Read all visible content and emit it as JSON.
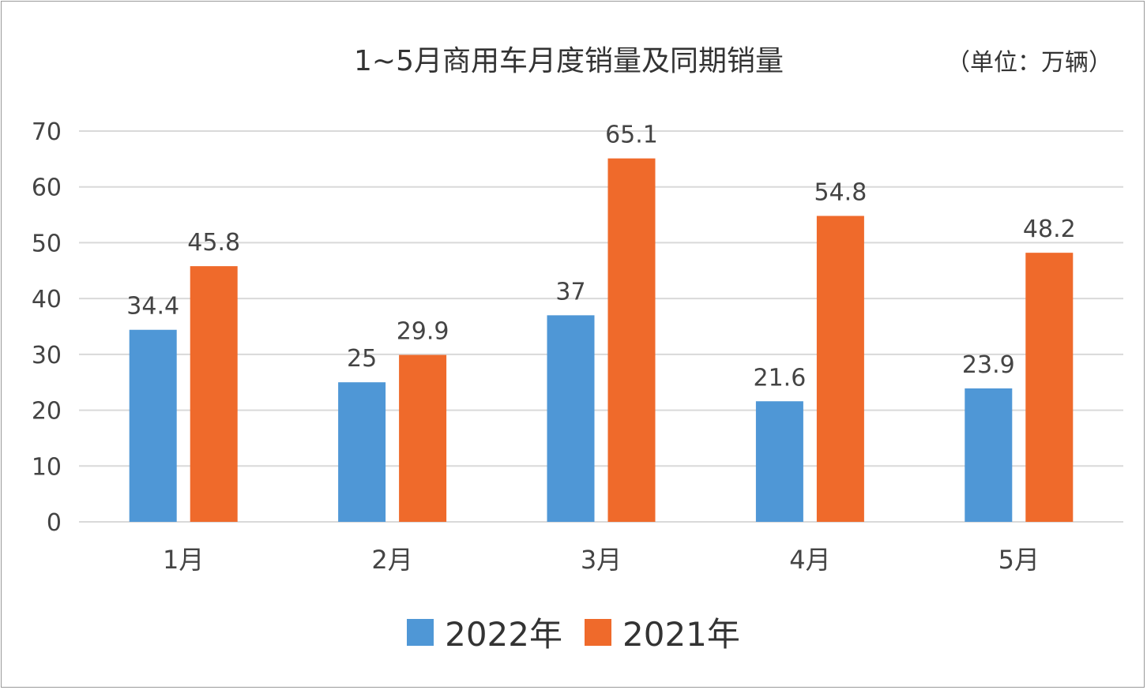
{
  "chart_data": {
    "type": "bar",
    "title": "1~5月商用车月度销量及同期销量",
    "unit": "（单位：万辆）",
    "categories": [
      "1月",
      "2月",
      "3月",
      "4月",
      "5月"
    ],
    "series": [
      {
        "name": "2022年",
        "color": "#4f97d6",
        "values": [
          34.4,
          25,
          37,
          21.6,
          23.9
        ]
      },
      {
        "name": "2021年",
        "color": "#ef6a2b",
        "values": [
          45.8,
          29.9,
          65.1,
          54.8,
          48.2
        ]
      }
    ],
    "yticks": [
      0,
      10,
      20,
      30,
      40,
      50,
      60,
      70
    ],
    "ylim": [
      0,
      70
    ],
    "grid": true,
    "legend": "bottom"
  }
}
